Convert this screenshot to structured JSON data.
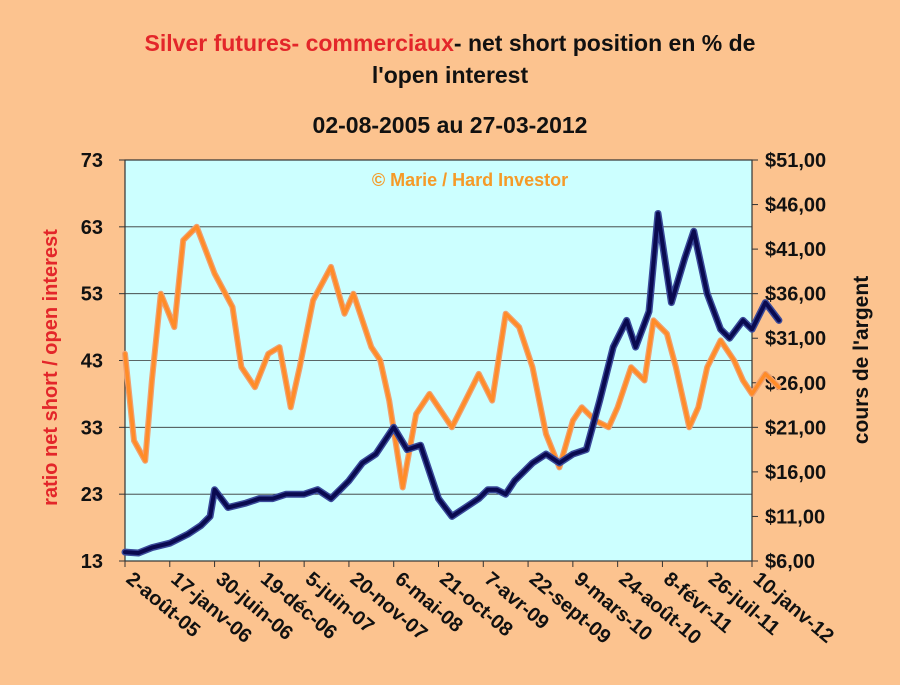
{
  "title": {
    "line1_highlight": "Silver futures- commerciaux",
    "line1_rest": "- net short position en % de",
    "line2": "l'open interest"
  },
  "subtitle": "02-08-2005 au 27-03-2012",
  "watermark": "© Marie / Hard Investor",
  "colors": {
    "background": "#fcc38f",
    "plot_area": "#ccffff",
    "ratio_series": "#ff8c28",
    "price_series": "#0a0a50",
    "title_highlight": "#e3262a",
    "watermark": "#f59a28"
  },
  "chart_data": {
    "type": "line",
    "title": "Silver futures- commerciaux- net short position en % de l'open interest",
    "subtitle": "02-08-2005 au 27-03-2012",
    "x_labels": [
      "2-août-05",
      "17-janv-06",
      "30-juin-06",
      "19-déc-06",
      "5-juin-07",
      "20-nov-07",
      "6-mai-08",
      "21-oct-08",
      "7-avr-09",
      "22-sept-09",
      "9-mars-10",
      "24-août-10",
      "8-févr-11",
      "26-juil-11",
      "10-janv-12"
    ],
    "y_left": {
      "label": "ratio net short / open interest",
      "min": 13,
      "max": 73,
      "ticks": [
        "13",
        "23",
        "33",
        "43",
        "53",
        "63",
        "73"
      ]
    },
    "y_right": {
      "label": "cours de l'argent",
      "min": 6,
      "max": 51,
      "ticks": [
        "$6,00",
        "$11,00",
        "$16,00",
        "$21,00",
        "$26,00",
        "$31,00",
        "$36,00",
        "$41,00",
        "$46,00",
        "$51,00"
      ]
    },
    "grid": "horizontal",
    "series": [
      {
        "axis": "left",
        "color": "#ff8c28",
        "x": [
          0,
          0.2,
          0.45,
          0.6,
          0.8,
          1.1,
          1.3,
          1.6,
          2.0,
          2.4,
          2.6,
          2.9,
          3.2,
          3.45,
          3.7,
          3.9,
          4.2,
          4.6,
          4.9,
          5.1,
          5.3,
          5.5,
          5.7,
          5.9,
          6.2,
          6.5,
          6.8,
          7.0,
          7.3,
          7.6,
          7.9,
          8.2,
          8.5,
          8.8,
          9.1,
          9.4,
          9.7,
          10.0,
          10.2,
          10.5,
          10.8,
          11.0,
          11.3,
          11.6,
          11.8,
          12.1,
          12.3,
          12.6,
          12.8,
          13.0,
          13.3,
          13.6,
          13.8,
          14.0,
          14.3,
          14.6
        ],
        "values": [
          44,
          31,
          28,
          40,
          53,
          48,
          61,
          63,
          56,
          51,
          42,
          39,
          44,
          45,
          36,
          42,
          52,
          57,
          50,
          53,
          49,
          45,
          43,
          37,
          24,
          35,
          38,
          36,
          33,
          37,
          41,
          37,
          50,
          48,
          42,
          32,
          27,
          34,
          36,
          34,
          33,
          36,
          42,
          40,
          49,
          47,
          42,
          33,
          36,
          42,
          46,
          43,
          40,
          38,
          41,
          39
        ]
      },
      {
        "axis": "right",
        "color": "#0a0a50",
        "x": [
          0,
          0.3,
          0.6,
          1.0,
          1.4,
          1.7,
          1.9,
          2.0,
          2.3,
          2.7,
          3.0,
          3.3,
          3.6,
          4.0,
          4.3,
          4.6,
          4.8,
          5.0,
          5.3,
          5.6,
          6.0,
          6.3,
          6.6,
          7.0,
          7.3,
          7.6,
          7.9,
          8.1,
          8.3,
          8.5,
          8.7,
          8.9,
          9.1,
          9.4,
          9.7,
          10.0,
          10.3,
          10.6,
          10.9,
          11.2,
          11.4,
          11.7,
          11.9,
          12.2,
          12.5,
          12.7,
          13.0,
          13.3,
          13.5,
          13.8,
          14.0,
          14.3,
          14.6
        ],
        "values": [
          7.0,
          6.9,
          7.5,
          8.0,
          9.0,
          10.0,
          11.0,
          14.0,
          12.0,
          12.5,
          13.0,
          13.0,
          13.5,
          13.5,
          14.0,
          13.0,
          14.0,
          15.0,
          17.0,
          18.0,
          21.0,
          18.5,
          19.0,
          13.0,
          11.0,
          12.0,
          13.0,
          14.0,
          14.0,
          13.5,
          15.0,
          16.0,
          17.0,
          18.0,
          17.0,
          18.0,
          18.5,
          24.0,
          30.0,
          33.0,
          30.0,
          34.0,
          45.0,
          35.0,
          40.0,
          43.0,
          36.0,
          32.0,
          31.0,
          33.0,
          32.0,
          35.0,
          33.0
        ]
      }
    ]
  }
}
